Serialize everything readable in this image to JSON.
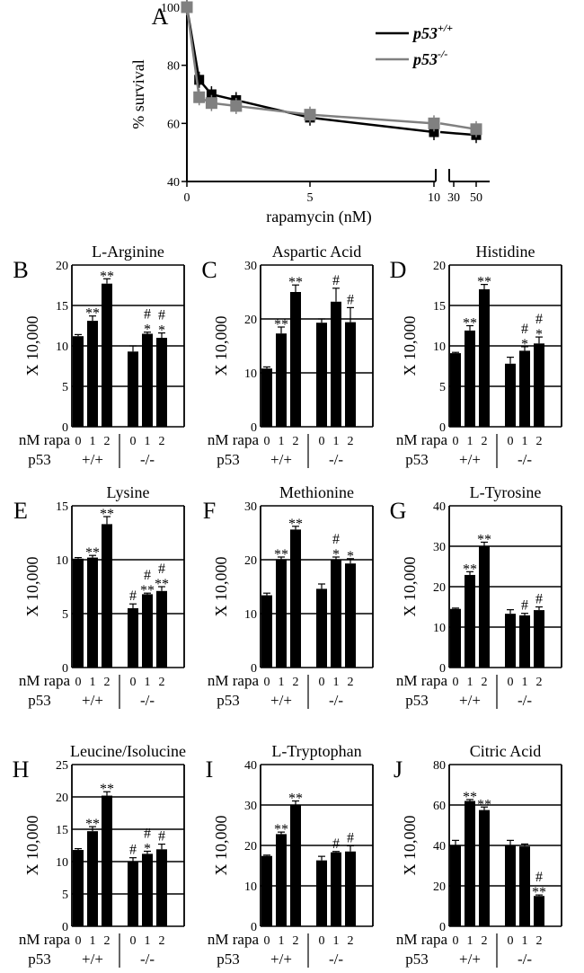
{
  "chart_data": [
    {
      "type": "line",
      "panel": "A",
      "xlabel": "rapamycin (nM)",
      "ylabel": "% survival",
      "ylim": [
        40,
        100
      ],
      "yticks": [
        "40",
        "60",
        "80",
        "100"
      ],
      "xticks": [
        "0",
        "5",
        "10",
        "30",
        "50"
      ],
      "legend": "top-right",
      "series": [
        {
          "name_base": "p53",
          "name_sup": "+/+",
          "color": "#000000",
          "x": [
            0,
            0.5,
            1,
            2,
            5,
            10,
            50
          ],
          "y": [
            100,
            75,
            70,
            68,
            62,
            57,
            56
          ]
        },
        {
          "name_base": "p53",
          "name_sup": "-/-",
          "color": "#808080",
          "x": [
            0,
            0.5,
            1,
            2,
            5,
            10,
            50
          ],
          "y": [
            100,
            69,
            67,
            66,
            63,
            60,
            58
          ]
        }
      ]
    },
    {
      "type": "bar",
      "panel": "B",
      "title": "L-Arginine",
      "ylabel": "X 10,000",
      "ylim": [
        0,
        20
      ],
      "yticks": [
        "0",
        "5",
        "10",
        "15",
        "20"
      ],
      "values": [
        11.2,
        13.1,
        17.7,
        9.3,
        11.5,
        11.0
      ],
      "errors": [
        0.2,
        0.6,
        0.6,
        0.7,
        0.2,
        0.6
      ],
      "annotations": [
        [
          "",
          "**",
          "**",
          "",
          "*\n#",
          "*\n#"
        ]
      ]
    },
    {
      "type": "bar",
      "panel": "C",
      "title": "Aspartic Acid",
      "ylabel": "X 10,000",
      "ylim": [
        0,
        30
      ],
      "yticks": [
        "0",
        "10",
        "20",
        "30"
      ],
      "values": [
        10.8,
        17.3,
        25.0,
        19.3,
        23.2,
        19.4
      ],
      "errors": [
        0.3,
        1.2,
        1.3,
        0.7,
        2.5,
        2.7
      ],
      "annotations": [
        [
          "",
          "**",
          "**",
          "",
          "#",
          "#"
        ]
      ]
    },
    {
      "type": "bar",
      "panel": "D",
      "title": "Histidine",
      "ylabel": "X 10,000",
      "ylim": [
        0,
        20
      ],
      "yticks": [
        "0",
        "5",
        "10",
        "15",
        "20"
      ],
      "values": [
        9.1,
        11.9,
        17.0,
        7.8,
        9.4,
        10.3
      ],
      "errors": [
        0.1,
        0.6,
        0.6,
        0.8,
        0.5,
        0.8
      ],
      "annotations": [
        [
          "",
          "**",
          "**",
          "",
          "*\n#",
          "*\n#"
        ]
      ]
    },
    {
      "type": "bar",
      "panel": "E",
      "title": "Lysine",
      "ylabel": "X 10,000",
      "ylim": [
        0,
        15
      ],
      "yticks": [
        "0",
        "5",
        "10",
        "15"
      ],
      "values": [
        10.1,
        10.2,
        13.3,
        5.5,
        6.8,
        7.1
      ],
      "errors": [
        0.1,
        0.2,
        0.7,
        0.4,
        0.1,
        0.4
      ],
      "annotations": [
        [
          "",
          "**",
          "**",
          "#",
          "**\n#",
          "**\n#"
        ]
      ]
    },
    {
      "type": "bar",
      "panel": "F",
      "title": "Methionine",
      "ylabel": "X 10,000",
      "ylim": [
        0,
        30
      ],
      "yticks": [
        "0",
        "10",
        "20",
        "30"
      ],
      "values": [
        13.4,
        20.1,
        25.6,
        14.6,
        20.0,
        19.3
      ],
      "errors": [
        0.4,
        0.4,
        0.6,
        0.9,
        0.5,
        0.9
      ],
      "annotations": [
        [
          "",
          "**",
          "**",
          "",
          "*\n#",
          "*"
        ]
      ]
    },
    {
      "type": "bar",
      "panel": "G",
      "title": "L-Tyrosine",
      "ylabel": "X 10,000",
      "ylim": [
        0,
        40
      ],
      "yticks": [
        "0",
        "10",
        "20",
        "30",
        "40"
      ],
      "values": [
        14.5,
        22.9,
        30.1,
        13.3,
        12.9,
        14.2
      ],
      "errors": [
        0.2,
        0.8,
        0.9,
        1.0,
        0.5,
        0.8
      ],
      "annotations": [
        [
          "",
          "**",
          "**",
          "",
          "#",
          "#"
        ]
      ]
    },
    {
      "type": "bar",
      "panel": "H",
      "title": "Leucine/Isolucine",
      "ylabel": "X 10,000",
      "ylim": [
        0,
        25
      ],
      "yticks": [
        "0",
        "5",
        "10",
        "15",
        "20",
        "25"
      ],
      "values": [
        11.8,
        14.7,
        20.2,
        10.0,
        11.2,
        11.9
      ],
      "errors": [
        0.2,
        0.7,
        0.6,
        0.6,
        0.4,
        0.8
      ],
      "annotations": [
        [
          "",
          "**",
          "**",
          "#",
          "*\n#",
          "#"
        ]
      ]
    },
    {
      "type": "bar",
      "panel": "I",
      "title": "L-Tryptophan",
      "ylabel": "X 10,000",
      "ylim": [
        0,
        40
      ],
      "yticks": [
        "0",
        "10",
        "20",
        "30",
        "40"
      ],
      "values": [
        17.4,
        22.8,
        30.1,
        16.3,
        18.3,
        18.5
      ],
      "errors": [
        0.2,
        0.5,
        0.9,
        1.0,
        0.2,
        1.4
      ],
      "annotations": [
        [
          "",
          "**",
          "**",
          "",
          "#",
          "#"
        ]
      ]
    },
    {
      "type": "bar",
      "panel": "J",
      "title": "Citric Acid",
      "ylabel": "X 10,000",
      "ylim": [
        0,
        80
      ],
      "yticks": [
        "0",
        "20",
        "40",
        "60",
        "80"
      ],
      "values": [
        40.0,
        62.0,
        57.5,
        40.0,
        39.5,
        15.0
      ],
      "errors": [
        2.5,
        0.7,
        1.5,
        2.5,
        1.2,
        0.5
      ],
      "annotations": [
        [
          "",
          "**",
          "**",
          "",
          "",
          "**\n#"
        ]
      ]
    }
  ],
  "bar_axis": {
    "rapa_label": "nM rapa",
    "rapa_values": [
      "0",
      "1",
      "2",
      "0",
      "1",
      "2"
    ],
    "p53_label": "p53",
    "genotypes": [
      "+/+",
      "-/-"
    ]
  }
}
